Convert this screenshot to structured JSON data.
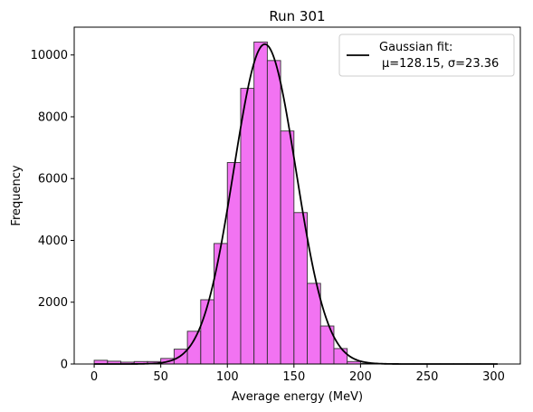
{
  "chart_data": {
    "type": "bar",
    "title": "Run 301",
    "xlabel": "Average energy (MeV)",
    "ylabel": "Frequency",
    "xlim": [
      -15,
      320
    ],
    "ylim": [
      0,
      10900
    ],
    "x_ticks": [
      0,
      50,
      100,
      150,
      200,
      250,
      300
    ],
    "y_ticks": [
      0,
      2000,
      4000,
      6000,
      8000,
      10000
    ],
    "bin_width": 10,
    "bin_edges_start": 0,
    "bar_color": "#ee44ee",
    "bar_edge_color": "#333333",
    "series": [
      {
        "name": "histogram",
        "bins_left": [
          0,
          10,
          20,
          30,
          40,
          50,
          60,
          70,
          80,
          90,
          100,
          110,
          120,
          130,
          140,
          150,
          160,
          170,
          180,
          190,
          200,
          210,
          220,
          230,
          240,
          250,
          260,
          270,
          280,
          290
        ],
        "values": [
          120,
          90,
          60,
          80,
          80,
          180,
          480,
          1060,
          2080,
          3900,
          6520,
          8920,
          10420,
          9820,
          7540,
          4900,
          2610,
          1230,
          500,
          80,
          20,
          10,
          5,
          5,
          5,
          5,
          5,
          5,
          5,
          5
        ]
      }
    ],
    "fit": {
      "name": "Gaussian fit:",
      "label_line2": "μ=128.15, σ=23.36",
      "mu": 128.15,
      "sigma": 23.36,
      "amplitude": 10350,
      "x_range": [
        0,
        303
      ],
      "color": "#000000"
    },
    "legend_position": "top-right"
  }
}
